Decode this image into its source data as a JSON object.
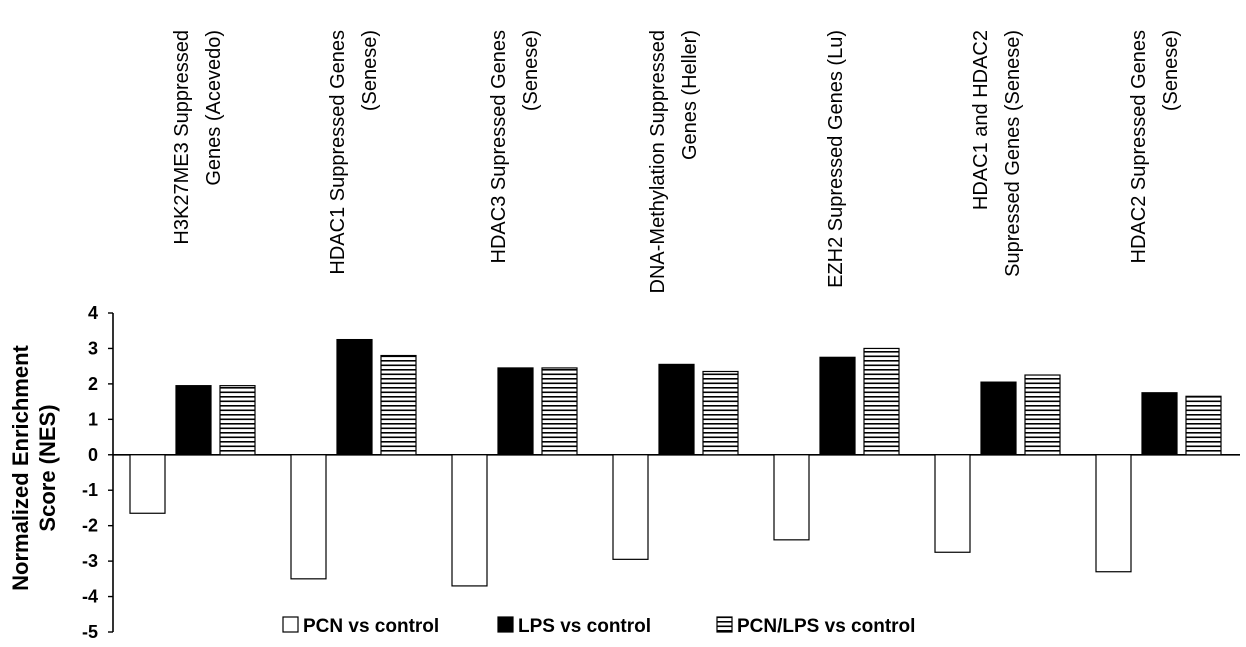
{
  "chart_data": {
    "type": "bar",
    "ylabel": "Normalized Enrichment Score (NES)",
    "ylim": [
      -5,
      4
    ],
    "yticks": [
      "4",
      "3",
      "2",
      "1",
      "0",
      "-1",
      "-2",
      "-3",
      "-4",
      "-5"
    ],
    "grid": false,
    "legend_position": "bottom",
    "categories": [
      [
        "H3K27ME3 Suppressed",
        "Genes (Acevedo)"
      ],
      [
        "HDAC1 Suppressed Genes",
        "(Senese)"
      ],
      [
        "HDAC3 Supressed Genes",
        "(Senese)"
      ],
      [
        "DNA-Methylation Suppressed",
        "Genes (Heller)"
      ],
      [
        "EZH2 Supressed Genes (Lu)"
      ],
      [
        "HDAC1 and HDAC2",
        "Supressed Genes (Senese)"
      ],
      [
        "HDAC2 Supressed Genes",
        "(Senese)"
      ]
    ],
    "series": [
      {
        "name": "PCN vs control",
        "style": "open",
        "color": "#ffffff",
        "values": [
          -1.65,
          -3.5,
          -3.7,
          -2.95,
          -2.4,
          -2.75,
          -3.3
        ]
      },
      {
        "name": "LPS vs control",
        "style": "solid",
        "color": "#000000",
        "values": [
          1.95,
          3.25,
          2.45,
          2.55,
          2.75,
          2.05,
          1.75
        ]
      },
      {
        "name": "PCN/LPS vs control",
        "style": "striped",
        "color": "#000000",
        "values": [
          1.95,
          2.8,
          2.45,
          2.35,
          3.0,
          2.25,
          1.65
        ]
      }
    ]
  }
}
